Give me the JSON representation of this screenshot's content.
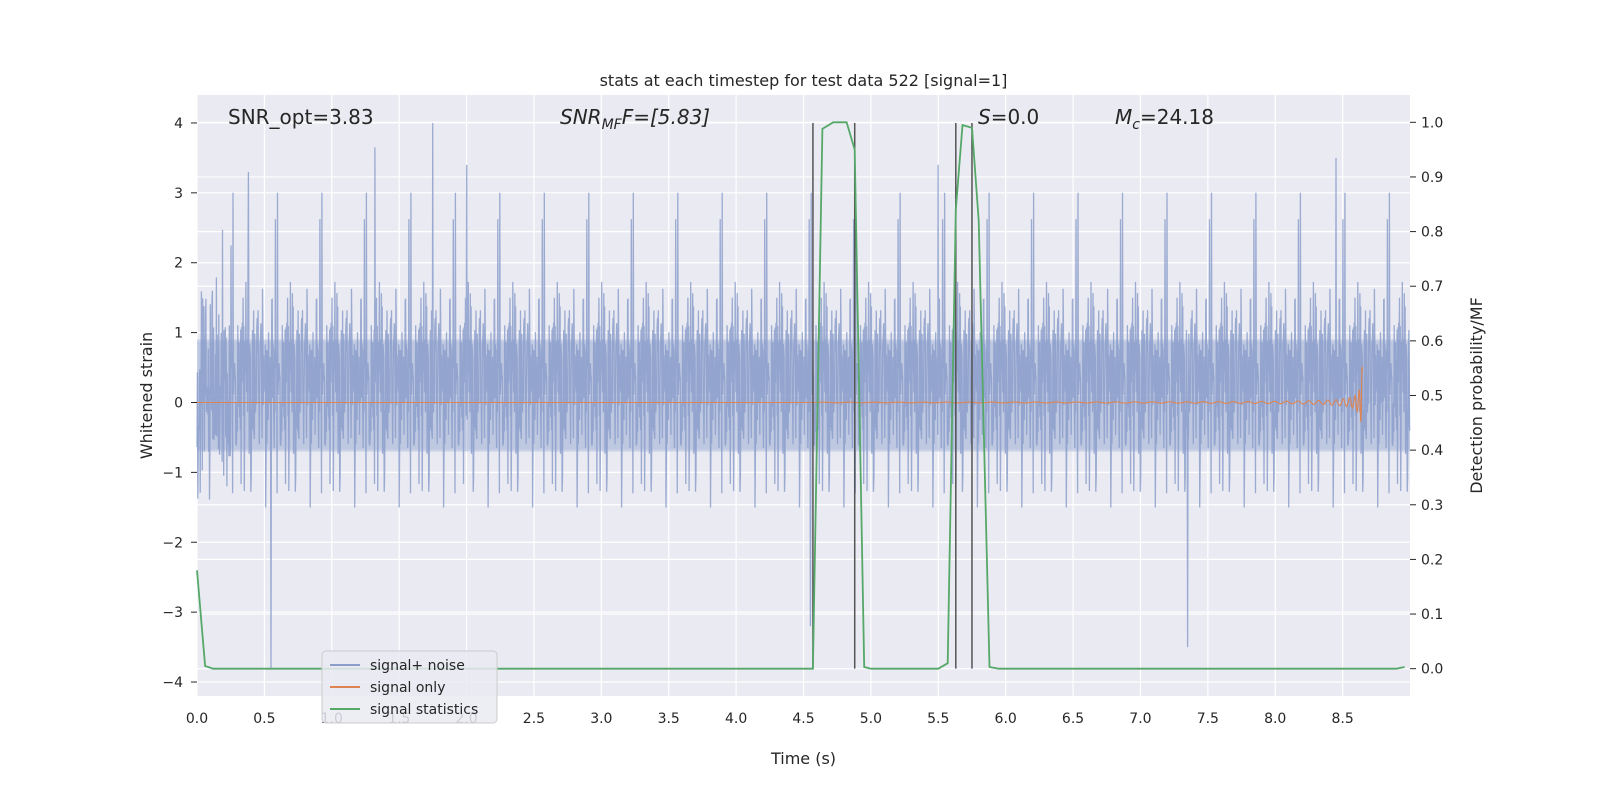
{
  "chart_data": {
    "type": "line",
    "title": "stats at each timestep for test data 522 [signal=1]",
    "xlabel": "Time (s)",
    "ylabel": "Whitened strain",
    "ylabel_right": "Detection probability/MF",
    "xlim": [
      0.0,
      9.0
    ],
    "ylim": [
      -4.2,
      4.4
    ],
    "ylim_right": [
      -0.05,
      1.05
    ],
    "x_ticks": [
      0.0,
      0.5,
      1.0,
      1.5,
      2.0,
      2.5,
      3.0,
      3.5,
      4.0,
      4.5,
      5.0,
      5.5,
      6.0,
      6.5,
      7.0,
      7.5,
      8.0,
      8.5
    ],
    "x_tick_labels": [
      "0.0",
      "0.5",
      "1.0",
      "1.5",
      "2.0",
      "2.5",
      "3.0",
      "3.5",
      "4.0",
      "4.5",
      "5.0",
      "5.5",
      "6.0",
      "6.5",
      "7.0",
      "7.5",
      "8.0",
      "8.5"
    ],
    "y_ticks": [
      4,
      3,
      2,
      1,
      0,
      -1,
      -2,
      -3,
      -4
    ],
    "y_tick_labels": [
      "4",
      "3",
      "2",
      "1",
      "0",
      "−1",
      "−2",
      "−3",
      "−4"
    ],
    "y_right_ticks": [
      1.0,
      0.9,
      0.8,
      0.7,
      0.6,
      0.5,
      0.4,
      0.3,
      0.2,
      0.1,
      0.0
    ],
    "y_right_tick_labels": [
      "1.0",
      "0.9",
      "0.8",
      "0.7",
      "0.6",
      "0.5",
      "0.4",
      "0.3",
      "0.2",
      "0.1",
      "0.0"
    ],
    "grid": true,
    "legend_position": "lower-left",
    "annotations": {
      "snr_opt": "SNR_opt=3.83",
      "snr_mf_main": "SNR",
      "snr_mf_sub": "MF",
      "snr_mf_rest": "F=[5.83]",
      "s_main": "S",
      "s_rest": "=0.0",
      "mc_main": "M",
      "mc_sub": "c",
      "mc_rest": "=24.18"
    },
    "series": [
      {
        "name": "signal+ noise",
        "color": "#8c9fcb",
        "axis": "left",
        "description": "dense noisy whitened strain, spread roughly ±2.2 with spikes to 4.0 and -3.8",
        "sample_rate_hz": 2048,
        "duration_s": 9.0,
        "envelope_core": [
          -0.7,
          0.9
        ],
        "spikes": [
          {
            "x": 0.55,
            "y": -3.8
          },
          {
            "x": 0.38,
            "y": 3.3
          },
          {
            "x": 1.32,
            "y": 3.65
          },
          {
            "x": 1.75,
            "y": 4.0
          },
          {
            "x": 2.0,
            "y": 3.4
          },
          {
            "x": 4.55,
            "y": -3.2
          },
          {
            "x": 5.5,
            "y": 3.4
          },
          {
            "x": 7.35,
            "y": -3.5
          },
          {
            "x": 8.45,
            "y": 3.5
          }
        ]
      },
      {
        "name": "signal only",
        "color": "#dd8452",
        "axis": "left",
        "description": "chirp signal, near zero until ~5.6 s then growing to amplitude ~0.7 and ending near 8.65 s",
        "chirp_start": 5.6,
        "chirp_end": 8.65,
        "peak_amplitude": 0.7
      },
      {
        "name": "signal statistics",
        "color": "#55a868",
        "axis": "right",
        "x": [
          0.0,
          0.06,
          0.12,
          0.5,
          1.0,
          2.0,
          3.0,
          4.0,
          4.5,
          4.57,
          4.64,
          4.72,
          4.82,
          4.88,
          4.95,
          5.0,
          5.5,
          5.57,
          5.63,
          5.68,
          5.75,
          5.8,
          5.88,
          5.95,
          6.5,
          7.0,
          8.0,
          8.5,
          8.9,
          8.96
        ],
        "y": [
          0.18,
          0.005,
          0.0,
          0.0,
          0.0,
          0.0,
          0.0,
          0.0,
          0.0,
          0.0,
          0.988,
          1.0,
          1.0,
          0.95,
          0.003,
          0.0,
          0.0,
          0.01,
          0.84,
          0.995,
          0.99,
          0.82,
          0.003,
          0.0,
          0.0,
          0.0,
          0.0,
          0.0,
          0.0,
          0.003
        ]
      }
    ],
    "event_markers": [
      {
        "x": 4.57,
        "color": "#555555",
        "y_top": 4.0
      },
      {
        "x": 4.88,
        "color": "#555555",
        "y_top": 4.0
      },
      {
        "x": 5.63,
        "color": "#555555",
        "y_top": 4.0
      },
      {
        "x": 5.75,
        "color": "#555555",
        "y_top": 4.0
      }
    ],
    "colors": {
      "plot_background": "#eaeaf2",
      "grid": "#ffffff",
      "text": "#262626"
    }
  }
}
